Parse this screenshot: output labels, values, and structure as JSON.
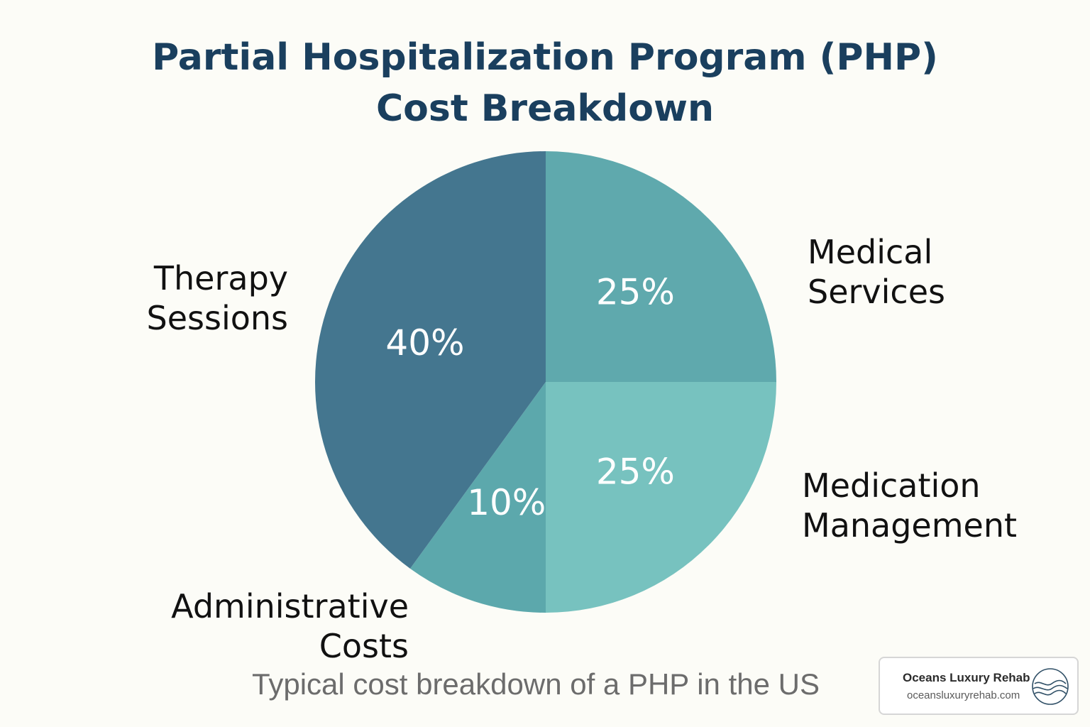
{
  "chart_data": {
    "type": "pie",
    "title_lines": [
      "Partial Hospitalization Program (PHP)",
      "Cost Breakdown"
    ],
    "slices": [
      {
        "label_lines": [
          "Medical",
          "Services"
        ],
        "value": 25,
        "display": "25%",
        "color": "#5fa9ad"
      },
      {
        "label_lines": [
          "Medication",
          "Management"
        ],
        "value": 25,
        "display": "25%",
        "color": "#77c2bf"
      },
      {
        "label_lines": [
          "Administrative",
          "Costs"
        ],
        "value": 10,
        "display": "10%",
        "color": "#5ca8ac"
      },
      {
        "label_lines": [
          "Therapy",
          "Sessions"
        ],
        "value": 40,
        "display": "40%",
        "color": "#44768f"
      }
    ],
    "caption": "Typical cost breakdown of a PHP in the US"
  },
  "branding": {
    "name": "Oceans Luxury Rehab",
    "url": "oceansluxuryrehab.com",
    "icon": "wave-logo-icon"
  }
}
